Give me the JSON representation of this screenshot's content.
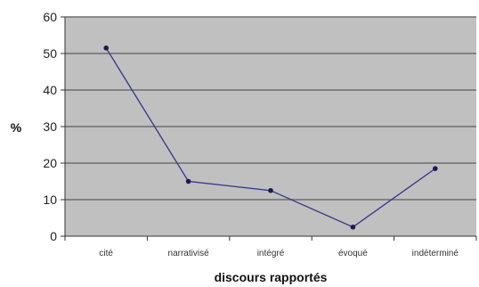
{
  "chart_data": {
    "type": "line",
    "categories": [
      "cité",
      "narrativisé",
      "intégré",
      "évoqué",
      "indéterminé"
    ],
    "series": [
      {
        "values": [
          51.5,
          15,
          12.5,
          2.5,
          18.5
        ]
      }
    ],
    "xlabel": "discours rapportés",
    "ylabel": "%",
    "ylim": [
      0,
      60
    ],
    "yticks": [
      0,
      10,
      20,
      30,
      40,
      50,
      60
    ],
    "grid": true,
    "colors": {
      "plot_background": "#c0c0c0",
      "gridline": "#6e6e6e",
      "line": "#3d3d8f",
      "marker": "#1c1c4d"
    }
  }
}
